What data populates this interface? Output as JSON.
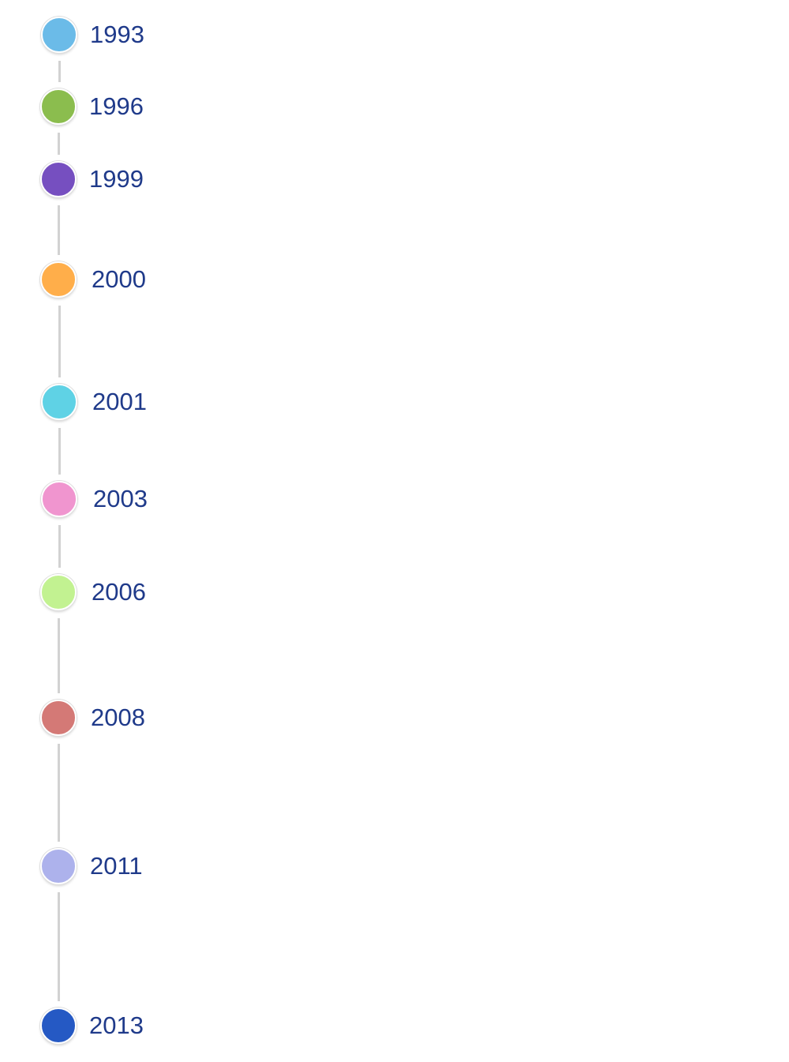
{
  "timeline": {
    "line_color": "#d2d2d2",
    "label_color": "#1f3a8a",
    "events": [
      {
        "year": "1993",
        "color": "#6bbbe8"
      },
      {
        "year": "1996",
        "color": "#8bbd4e"
      },
      {
        "year": "1999",
        "color": "#764fc0"
      },
      {
        "year": "2000",
        "color": "#ffae4a"
      },
      {
        "year": "2001",
        "color": "#5fd2e5"
      },
      {
        "year": "2003",
        "color": "#f095cf"
      },
      {
        "year": "2006",
        "color": "#c2f291"
      },
      {
        "year": "2008",
        "color": "#d47976"
      },
      {
        "year": "2011",
        "color": "#adb2ec"
      },
      {
        "year": "2013",
        "color": "#2559c4"
      }
    ]
  }
}
